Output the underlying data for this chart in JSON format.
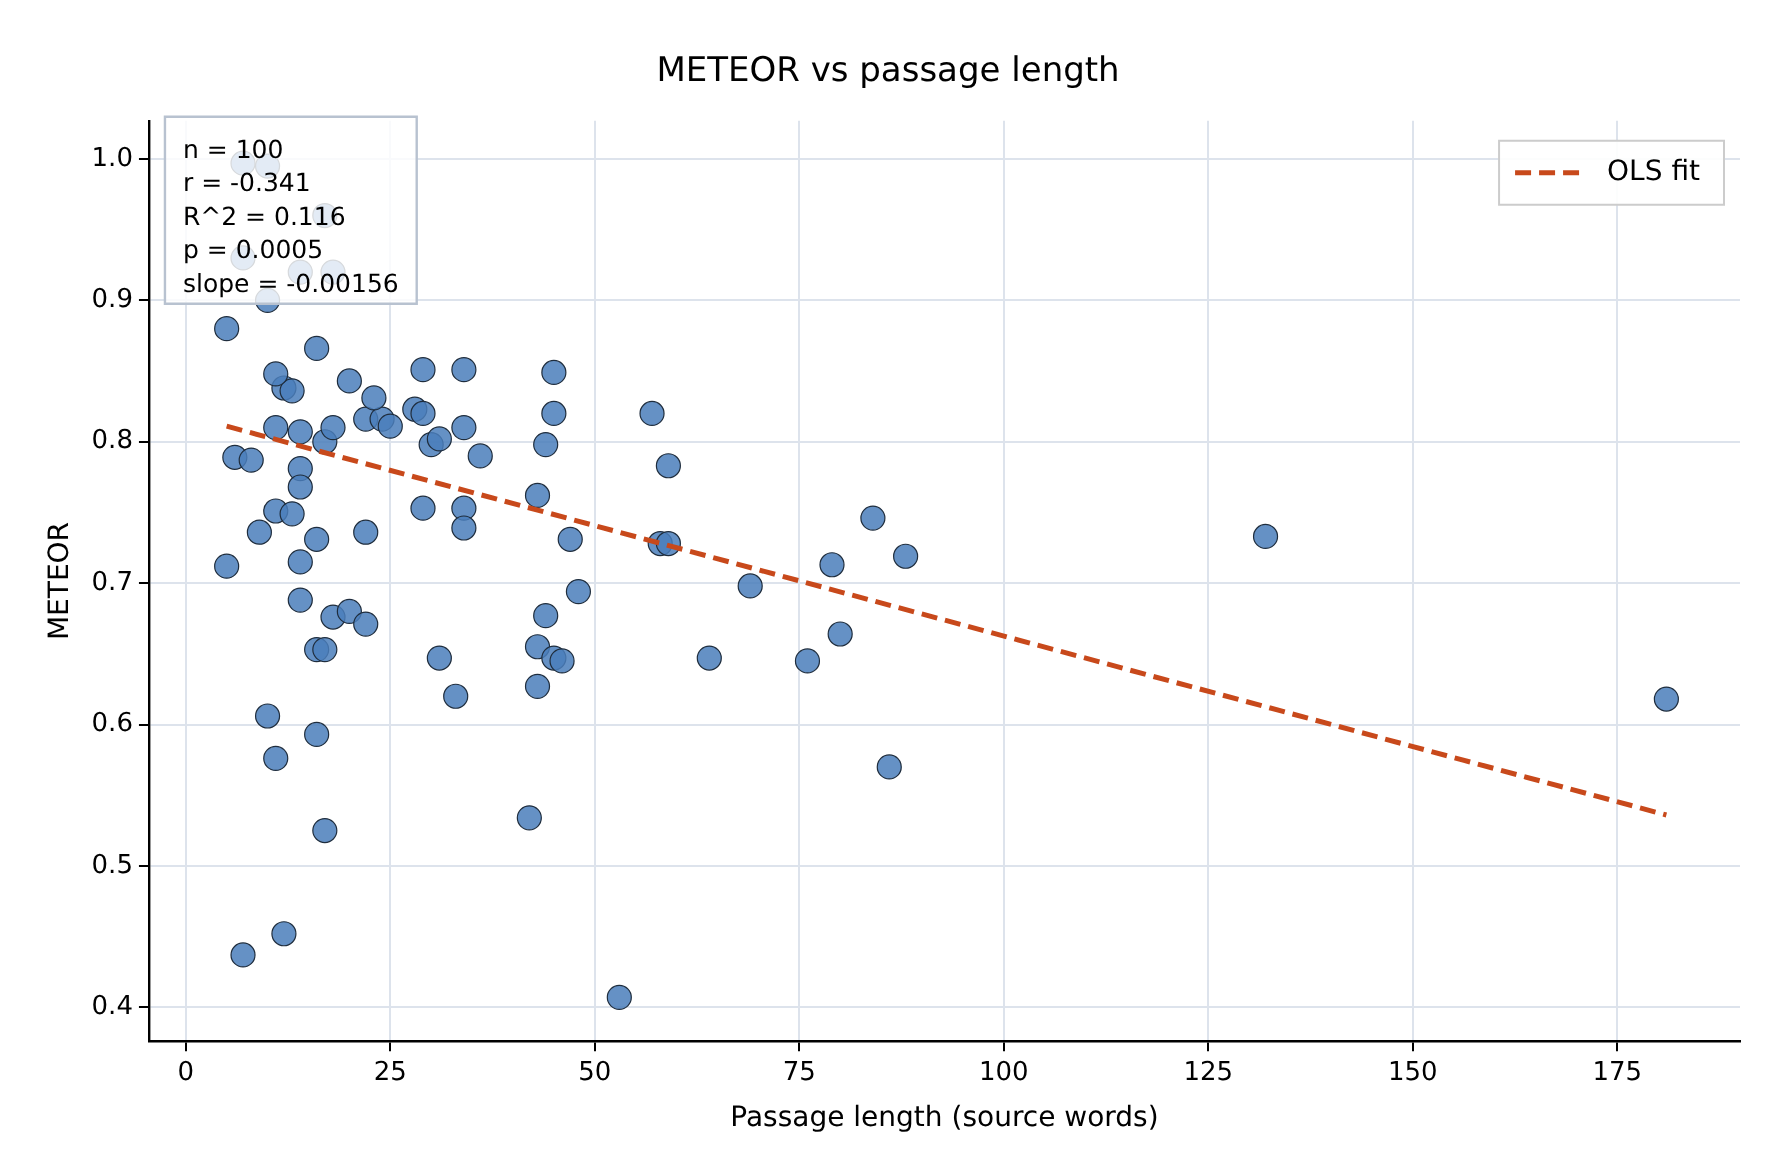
{
  "chart_data": {
    "type": "scatter",
    "title": "METEOR vs passage length",
    "xlabel": "Passage length (source words)",
    "ylabel": "METEOR",
    "annotations": [
      "n = 100",
      "r = -0.341",
      "R^2 = 0.116",
      "p = 0.0005",
      "slope = -0.00156"
    ],
    "xlim": [
      -4.5,
      190
    ],
    "xticks": [
      0,
      25,
      50,
      75,
      100,
      125,
      150,
      175
    ],
    "ylim": [
      0.376,
      1.027
    ],
    "yticks": [
      0.4,
      0.5,
      0.6,
      0.7,
      0.8,
      0.9,
      {
        "value": 1,
        "label": "1.0"
      }
    ],
    "grid": true,
    "legend": "top right",
    "marker": "circle",
    "series": [
      {
        "type": "scatter",
        "color": "#4a7ebb",
        "x": [
          5,
          14,
          14,
          18,
          20,
          22,
          16,
          17,
          31,
          33,
          43,
          44,
          48,
          45,
          46,
          43,
          10,
          16,
          11,
          17,
          42,
          7,
          12,
          53,
          6,
          8,
          11,
          14,
          17,
          18,
          14,
          14,
          11,
          13,
          9,
          16,
          22,
          22,
          20,
          24,
          23,
          25,
          28,
          29,
          30,
          31,
          34,
          36,
          29,
          34,
          34,
          43,
          44,
          45,
          45,
          12,
          13,
          11,
          47,
          57,
          59,
          58,
          59,
          69,
          64,
          76,
          80,
          79,
          84,
          88,
          86,
          132,
          181,
          7,
          17,
          7,
          14,
          18,
          10,
          5,
          16,
          29,
          34,
          10
        ],
        "values": [
          0.712,
          0.715,
          0.688,
          0.676,
          0.68,
          0.671,
          0.653,
          0.653,
          0.647,
          0.62,
          0.655,
          0.677,
          0.694,
          0.647,
          0.645,
          0.627,
          0.606,
          0.593,
          0.576,
          0.525,
          0.534,
          0.437,
          0.452,
          0.407,
          0.789,
          0.787,
          0.81,
          0.807,
          0.8,
          0.81,
          0.781,
          0.768,
          0.751,
          0.749,
          0.736,
          0.731,
          0.736,
          0.816,
          0.843,
          0.816,
          0.831,
          0.811,
          0.823,
          0.82,
          0.798,
          0.802,
          0.81,
          0.79,
          0.753,
          0.753,
          0.739,
          0.762,
          0.798,
          0.82,
          0.849,
          0.838,
          0.836,
          0.848,
          0.731,
          0.82,
          0.783,
          0.728,
          0.728,
          0.698,
          0.647,
          0.645,
          0.664,
          0.713,
          0.746,
          0.719,
          0.57,
          0.733,
          0.618,
          0.997,
          0.96,
          0.93,
          0.92,
          0.92,
          0.9,
          0.88,
          0.866,
          0.851,
          0.851,
          0.995
        ]
      },
      {
        "type": "line",
        "name": "OLS fit",
        "color": "#c8491b",
        "line_style": "dashed",
        "marker": "none",
        "x": [
          5,
          181
        ],
        "values": [
          0.811,
          0.536
        ]
      }
    ]
  }
}
